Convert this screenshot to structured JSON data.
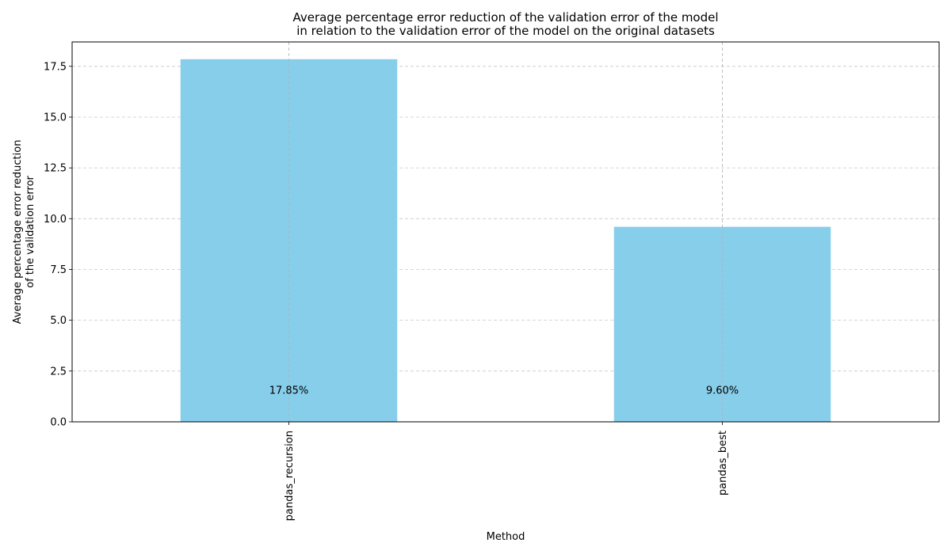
{
  "chart_data": {
    "type": "bar",
    "title": "Average percentage error reduction of the validation error of the model",
    "subtitle": "in relation to the validation error of the model on the original datasets",
    "xlabel": "Method",
    "ylabel_line1": "Average percentage error reduction",
    "ylabel_line2": "of the validation error",
    "categories": [
      "pandas_recursion",
      "pandas_best"
    ],
    "values": [
      17.85,
      9.6
    ],
    "bar_labels": [
      "17.85%",
      "9.60%"
    ],
    "ylim": [
      0,
      18.7
    ],
    "yticks": [
      0.0,
      2.5,
      5.0,
      7.5,
      10.0,
      12.5,
      15.0,
      17.5
    ],
    "ytick_labels": [
      "0.0",
      "2.5",
      "5.0",
      "7.5",
      "10.0",
      "12.5",
      "15.0",
      "17.5"
    ],
    "grid": true,
    "bar_color": "#87ceeb"
  }
}
